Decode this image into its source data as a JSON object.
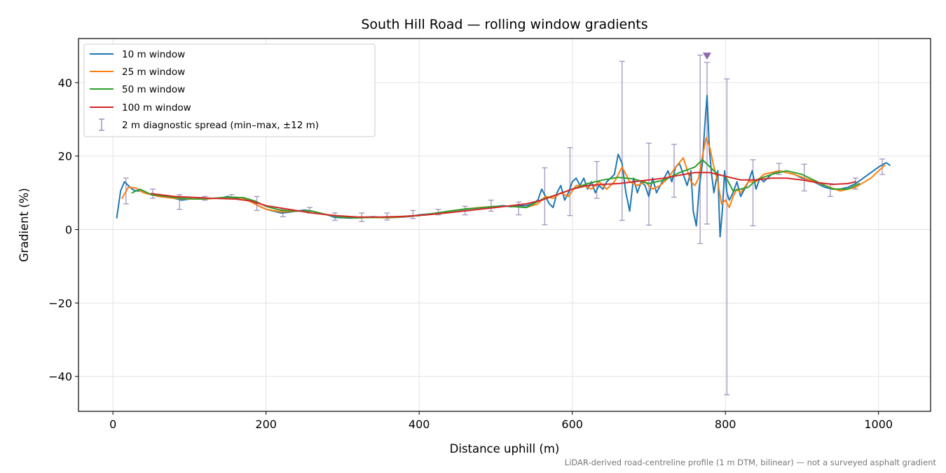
{
  "chart_data": {
    "type": "line",
    "title": "South Hill Road — rolling window gradients",
    "xlabel": "Distance uphill (m)",
    "ylabel": "Gradient (%)",
    "xlim": [
      -45,
      1068
    ],
    "ylim": [
      -49.5,
      52
    ],
    "xticks": [
      0,
      200,
      400,
      600,
      800,
      1000
    ],
    "yticks": [
      -40,
      -20,
      0,
      20,
      40
    ],
    "xtick_labels": [
      "0",
      "200",
      "400",
      "600",
      "800",
      "1000"
    ],
    "ytick_labels": [
      "−40",
      "−20",
      "0",
      "20",
      "40"
    ],
    "grid": true,
    "legend_position": "upper-left",
    "footnote": "LiDAR-derived road-centreline profile (1 m DTM, bilinear) — not a surveyed asphalt gradient",
    "series": [
      {
        "name": "10 m window",
        "color": "#1f77b4",
        "x": [
          5,
          10,
          15,
          20,
          25,
          30,
          40,
          50,
          60,
          70,
          80,
          90,
          100,
          110,
          120,
          130,
          140,
          150,
          160,
          170,
          180,
          190,
          200,
          210,
          220,
          230,
          240,
          250,
          260,
          270,
          280,
          290,
          300,
          310,
          320,
          330,
          340,
          350,
          360,
          370,
          380,
          390,
          400,
          420,
          440,
          460,
          480,
          500,
          510,
          520,
          530,
          540,
          548,
          555,
          560,
          565,
          570,
          575,
          580,
          585,
          590,
          595,
          600,
          605,
          610,
          615,
          620,
          625,
          630,
          635,
          640,
          645,
          650,
          655,
          660,
          665,
          670,
          675,
          680,
          685,
          690,
          695,
          700,
          705,
          710,
          715,
          720,
          725,
          730,
          735,
          740,
          745,
          750,
          755,
          758,
          762,
          766,
          770,
          773,
          776,
          779,
          782,
          785,
          790,
          793,
          796,
          799,
          802,
          805,
          810,
          815,
          820,
          825,
          830,
          835,
          840,
          845,
          850,
          855,
          860,
          870,
          880,
          890,
          900,
          910,
          920,
          930,
          940,
          950,
          960,
          970,
          980,
          990,
          1000,
          1010,
          1015
        ],
        "values": [
          3.2,
          10.5,
          13,
          12,
          11,
          10.5,
          10.5,
          9.5,
          9,
          8.8,
          8.5,
          8,
          8.3,
          8.3,
          8.3,
          8.5,
          8.5,
          9,
          8.5,
          8.7,
          8,
          6.5,
          5.5,
          5,
          4.5,
          4.7,
          5,
          5.3,
          5,
          4.5,
          4,
          3.3,
          3.2,
          3.1,
          3.2,
          3.3,
          3.5,
          3.3,
          3.2,
          3.3,
          3.4,
          3.6,
          4,
          4.4,
          5,
          5.5,
          6,
          6.3,
          6.5,
          6.2,
          6.5,
          6.5,
          7,
          8,
          11,
          9,
          7,
          6,
          10,
          12,
          8,
          10,
          13,
          14,
          12,
          14,
          11,
          13,
          10,
          12,
          11,
          13,
          14,
          15,
          20.5,
          18,
          10,
          5,
          14,
          10,
          13,
          12,
          9,
          14,
          10,
          12,
          14,
          16,
          13,
          17,
          18,
          15,
          12,
          16,
          5,
          1,
          12,
          18,
          28,
          36.5,
          22,
          15,
          10,
          16,
          -2,
          5,
          16,
          10,
          8,
          10,
          13,
          9,
          11,
          13,
          16,
          11,
          14,
          13,
          14,
          15,
          16,
          15.5,
          15,
          14,
          13.5,
          12.5,
          11.5,
          11,
          11,
          11.5,
          12.5,
          14,
          15.5,
          17,
          18.2,
          17.5
        ]
      },
      {
        "name": "25 m window",
        "color": "#ff7f0e",
        "x": [
          12,
          20,
          30,
          40,
          50,
          60,
          80,
          100,
          120,
          140,
          160,
          170,
          180,
          190,
          200,
          220,
          240,
          260,
          280,
          300,
          320,
          340,
          360,
          380,
          400,
          420,
          440,
          460,
          480,
          500,
          520,
          540,
          555,
          565,
          575,
          585,
          595,
          605,
          615,
          625,
          635,
          645,
          655,
          665,
          675,
          685,
          695,
          705,
          715,
          725,
          735,
          745,
          755,
          760,
          765,
          770,
          775,
          780,
          785,
          790,
          795,
          800,
          805,
          810,
          815,
          820,
          830,
          840,
          850,
          870,
          890,
          910,
          930,
          950,
          970,
          990,
          1008
        ],
        "values": [
          8.5,
          11.5,
          11.3,
          10,
          9.5,
          9,
          8.5,
          8.3,
          8.3,
          8.6,
          8.8,
          8.5,
          7.5,
          6.5,
          5.5,
          4.8,
          5,
          5,
          4,
          3.3,
          3.2,
          3.3,
          3.2,
          3.5,
          3.8,
          4.4,
          5,
          5.6,
          6,
          6.3,
          6.3,
          6,
          7,
          9,
          8.5,
          10,
          9,
          12,
          12,
          11,
          13,
          11,
          13,
          17,
          13,
          12,
          13,
          11,
          12,
          14,
          17,
          19.5,
          13,
          12,
          14,
          20,
          25,
          22,
          17,
          13,
          7,
          8,
          6,
          9,
          11,
          10,
          13,
          13,
          15,
          16,
          15,
          13.5,
          12,
          10.5,
          11.5,
          14,
          17.5
        ]
      },
      {
        "name": "50 m window",
        "color": "#2ca02c",
        "x": [
          25,
          35,
          50,
          70,
          90,
          110,
          130,
          150,
          170,
          185,
          200,
          220,
          240,
          260,
          280,
          300,
          320,
          340,
          360,
          380,
          400,
          420,
          440,
          460,
          480,
          500,
          520,
          540,
          560,
          580,
          600,
          620,
          640,
          660,
          680,
          700,
          720,
          740,
          760,
          770,
          780,
          790,
          800,
          810,
          820,
          830,
          840,
          860,
          880,
          900,
          920,
          940,
          960,
          975
        ],
        "values": [
          10,
          11,
          9.5,
          9,
          8.5,
          8.3,
          8.5,
          8.8,
          8.7,
          7.8,
          6.3,
          5.2,
          5,
          5,
          4,
          3.3,
          3.2,
          3.3,
          3.3,
          3.6,
          3.8,
          4.4,
          5,
          5.6,
          5.9,
          6.3,
          6.3,
          6,
          8.2,
          9.5,
          11,
          12.5,
          13.5,
          14.2,
          13.8,
          12.5,
          13.5,
          15.5,
          17,
          19,
          17,
          15,
          14.5,
          10.5,
          11,
          11.5,
          13.5,
          15,
          16,
          15,
          13,
          11,
          11,
          12.5
        ]
      },
      {
        "name": "100 m window",
        "color": "#d62728",
        "x": [
          50,
          80,
          100,
          130,
          160,
          180,
          200,
          230,
          260,
          290,
          320,
          350,
          380,
          410,
          440,
          470,
          500,
          520,
          540,
          560,
          580,
          600,
          620,
          640,
          660,
          680,
          700,
          720,
          740,
          760,
          780,
          800,
          820,
          840,
          860,
          880,
          900,
          920,
          940,
          960,
          970
        ],
        "values": [
          9.8,
          9,
          8.8,
          8.5,
          8.3,
          7.8,
          6.5,
          5.5,
          4.5,
          3.8,
          3.4,
          3.4,
          3.6,
          4,
          4.6,
          5.3,
          6,
          6.5,
          7,
          8,
          9.5,
          11,
          12,
          12.3,
          12.5,
          13,
          13.5,
          14,
          14.8,
          15.5,
          15.5,
          14.5,
          13.5,
          13.5,
          14,
          14,
          13.5,
          12.8,
          12.3,
          12.5,
          13
        ]
      }
    ],
    "diagnostic": {
      "name": "2 m diagnostic spread (min–max, ±12 m)",
      "color": "#9b8bb8",
      "x": [
        17,
        52,
        87,
        120,
        155,
        188,
        222,
        257,
        290,
        325,
        358,
        392,
        425,
        460,
        494,
        530,
        564,
        597,
        632,
        665,
        700,
        733,
        767,
        776,
        802,
        836,
        870,
        903,
        937,
        970,
        1005
      ],
      "low": [
        7,
        8.5,
        5.5,
        8,
        8.5,
        5.2,
        3.5,
        4.5,
        2.5,
        2.2,
        2.6,
        3,
        4,
        4,
        5,
        4,
        1.3,
        3.8,
        8.5,
        2.5,
        1.2,
        8.8,
        -3.8,
        1.5,
        -45,
        1,
        15,
        10.5,
        9,
        11,
        15
      ],
      "high": [
        14,
        11,
        9.5,
        9,
        9.5,
        9,
        5.5,
        6,
        4.5,
        4.5,
        4.5,
        5.2,
        5.5,
        6.3,
        8,
        7.5,
        16.8,
        22.3,
        18.5,
        45.8,
        23.5,
        23.2,
        47.5,
        45.5,
        41,
        19,
        18,
        17.8,
        12.5,
        14,
        19.2
      ]
    },
    "marker": {
      "x": 776,
      "y": 47.2,
      "color": "#8c6bb1",
      "shape": "triangle-down"
    }
  }
}
